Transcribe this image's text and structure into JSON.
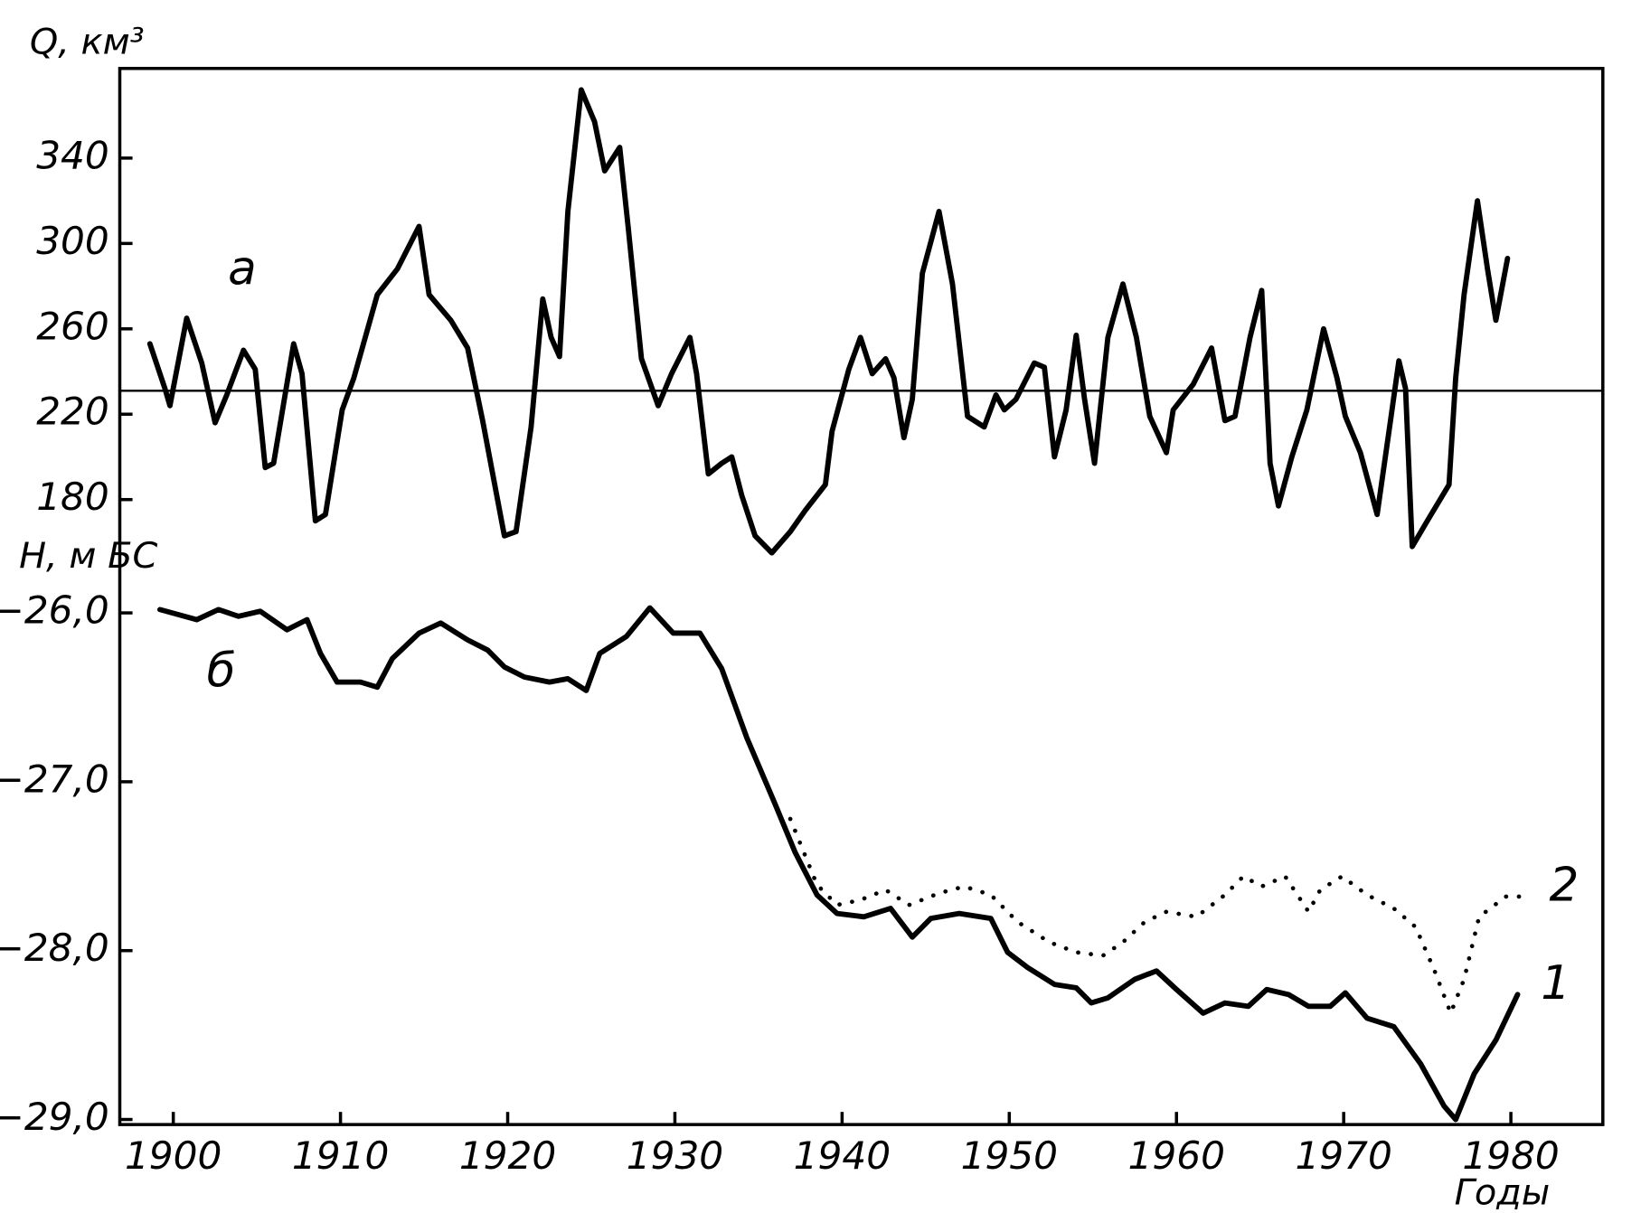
{
  "chart_data": [
    {
      "type": "line",
      "y_label": "Q, км³",
      "annotation": "а",
      "color": "#000000",
      "hline": 231,
      "xlim": [
        1896.8,
        1985.5
      ],
      "ylim": [
        160,
        382
      ],
      "yticks": [
        180,
        220,
        260,
        300,
        340
      ],
      "x": [
        1898.6,
        1899.5,
        1899.8,
        1900.8,
        1901.7,
        1902.5,
        1903.2,
        1904.2,
        1904.9,
        1905.5,
        1906,
        1907.2,
        1907.7,
        1908.5,
        1909.1,
        1910.1,
        1910.8,
        1912.2,
        1913.4,
        1914.7,
        1915.3,
        1916.6,
        1917.6,
        1918.5,
        1919.8,
        1920.5,
        1921.4,
        1922.1,
        1922.6,
        1923.1,
        1923.6,
        1924.4,
        1925.2,
        1925.8,
        1926.7,
        1927.2,
        1928,
        1929,
        1929.8,
        1930.9,
        1931.3,
        1932,
        1932.8,
        1933.4,
        1934,
        1934.8,
        1935.8,
        1936.9,
        1937.8,
        1939,
        1939.4,
        1940.4,
        1941.1,
        1941.8,
        1942.6,
        1943.1,
        1943.7,
        1944.2,
        1944.8,
        1945.8,
        1946.6,
        1947.5,
        1948.5,
        1949.2,
        1949.7,
        1950.4,
        1951.5,
        1952.1,
        1952.7,
        1953.4,
        1954,
        1954.5,
        1955.1,
        1955.9,
        1956.8,
        1957.6,
        1958.4,
        1959.4,
        1959.8,
        1961,
        1962.1,
        1962.9,
        1963.5,
        1964.4,
        1965.1,
        1965.6,
        1966.1,
        1966.9,
        1967.8,
        1968.8,
        1969.6,
        1970.1,
        1971,
        1972,
        1972.8,
        1973.3,
        1973.7,
        1974.1,
        1975,
        1976.3,
        1976.7,
        1977.2,
        1978,
        1978.6,
        1979.1,
        1979.8
      ],
      "values": [
        253,
        232,
        224,
        265,
        244,
        216,
        229,
        250,
        241,
        195,
        197,
        253,
        239,
        170,
        173,
        222,
        237,
        276,
        288,
        308,
        276,
        264,
        251,
        217,
        163,
        165,
        214,
        274,
        256,
        247,
        315,
        372,
        357,
        334,
        345,
        308,
        246,
        224,
        239,
        256,
        239,
        192,
        197,
        200,
        182,
        163,
        155,
        165,
        175,
        187,
        212,
        241,
        256,
        239,
        246,
        237,
        209,
        227,
        286,
        315,
        281,
        219,
        214,
        229,
        222,
        227,
        244,
        242,
        200,
        222,
        257,
        227,
        197,
        256,
        281,
        256,
        219,
        202,
        222,
        234,
        251,
        217,
        219,
        256,
        278,
        197,
        177,
        200,
        222,
        260,
        237,
        219,
        202,
        173,
        217,
        245,
        232,
        158,
        170,
        187,
        237,
        276,
        320,
        288,
        264,
        293
      ]
    },
    {
      "type": "line",
      "y_label": "Н, м БС",
      "x_label": "Годы",
      "annotation": "б",
      "xlim": [
        1896.8,
        1985.5
      ],
      "xticks": [
        1900,
        1910,
        1920,
        1930,
        1940,
        1950,
        1960,
        1970,
        1980
      ],
      "ylim": [
        -29.03,
        -25.8
      ],
      "yticks": [
        {
          "value": -26,
          "label": "−26,0"
        },
        {
          "value": -27,
          "label": "−27,0"
        },
        {
          "value": -28,
          "label": "−28,0"
        },
        {
          "value": -29,
          "label": "−29,0"
        }
      ],
      "series": [
        {
          "name": "1",
          "color": "#000000",
          "style": "solid",
          "x": [
            1899.2,
            1901.4,
            1902.7,
            1903.9,
            1905.2,
            1906.8,
            1908,
            1908.8,
            1909.8,
            1911.2,
            1912.2,
            1913.1,
            1914.7,
            1916,
            1917.6,
            1918.8,
            1919.8,
            1921,
            1922.5,
            1923.6,
            1924.7,
            1925.5,
            1927.1,
            1928.5,
            1929.9,
            1931.5,
            1932.8,
            1934.3,
            1935.9,
            1937.2,
            1938.5,
            1939.7,
            1941.3,
            1942.9,
            1944.2,
            1945.3,
            1947,
            1948.9,
            1949.9,
            1951.1,
            1952.7,
            1954,
            1954.9,
            1955.9,
            1957.5,
            1958.8,
            1960,
            1961.6,
            1962.9,
            1964.3,
            1965.4,
            1966.7,
            1967.9,
            1969.2,
            1970.1,
            1971.4,
            1973,
            1974.6,
            1976,
            1976.7,
            1977.8,
            1979.1,
            1980.4
          ],
          "values": [
            -25.98,
            -26.04,
            -25.98,
            -26.02,
            -25.99,
            -26.1,
            -26.04,
            -26.24,
            -26.41,
            -26.41,
            -26.44,
            -26.27,
            -26.12,
            -26.06,
            -26.16,
            -26.22,
            -26.32,
            -26.38,
            -26.41,
            -26.39,
            -26.46,
            -26.24,
            -26.14,
            -25.97,
            -26.12,
            -26.12,
            -26.33,
            -26.74,
            -27.11,
            -27.42,
            -27.67,
            -27.78,
            -27.8,
            -27.75,
            -27.92,
            -27.81,
            -27.78,
            -27.81,
            -28.01,
            -28.1,
            -28.2,
            -28.22,
            -28.31,
            -28.28,
            -28.17,
            -28.12,
            -28.23,
            -28.37,
            -28.31,
            -28.33,
            -28.23,
            -28.26,
            -28.33,
            -28.33,
            -28.25,
            -28.4,
            -28.45,
            -28.67,
            -28.92,
            -29.0,
            -28.73,
            -28.53,
            -28.26
          ]
        },
        {
          "name": "2",
          "color": "#000000",
          "style": "dotted",
          "x": [
            1936.9,
            1938.5,
            1939.7,
            1941.1,
            1942.6,
            1944,
            1945.8,
            1947.3,
            1948.9,
            1950.5,
            1952.4,
            1954,
            1955.6,
            1956.8,
            1958.1,
            1959.4,
            1961.2,
            1962.9,
            1964,
            1965.1,
            1966.5,
            1967.9,
            1968.6,
            1969.9,
            1971.4,
            1973,
            1974.3,
            1975.4,
            1976.4,
            1977.2,
            1978.1,
            1979.7,
            1980.9
          ],
          "values": [
            -27.22,
            -27.61,
            -27.73,
            -27.7,
            -27.64,
            -27.73,
            -27.66,
            -27.62,
            -27.67,
            -27.83,
            -27.95,
            -28.01,
            -28.03,
            -27.95,
            -27.83,
            -27.77,
            -27.8,
            -27.67,
            -27.56,
            -27.62,
            -27.56,
            -27.77,
            -27.64,
            -27.56,
            -27.67,
            -27.75,
            -27.86,
            -28.11,
            -28.37,
            -28.17,
            -27.8,
            -27.68,
            -27.68
          ]
        }
      ]
    }
  ]
}
